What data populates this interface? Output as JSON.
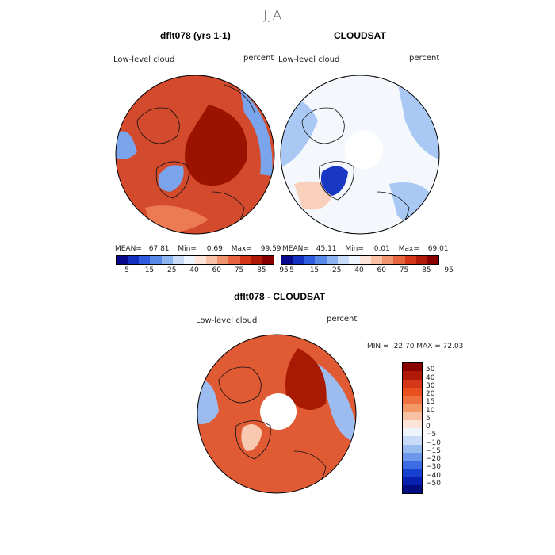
{
  "season": "JJA",
  "panels": {
    "model": {
      "title": "dflt078 (yrs 1-1)",
      "field_label": "Low-level cloud",
      "units": "percent",
      "stats": {
        "mean_label": "MEAN=",
        "mean": "67.81",
        "min_label": "Min=",
        "min": "0.69",
        "max_label": "Max=",
        "max": "99.59"
      }
    },
    "obs": {
      "title": "CLOUDSAT",
      "field_label": "Low-level cloud",
      "units": "percent",
      "stats": {
        "mean_label": "MEAN=",
        "mean": "45.11",
        "min_label": "Min=",
        "min": "0.01",
        "max_label": "Max=",
        "max": "69.01"
      }
    },
    "diff": {
      "title": "dflt078 - CLOUDSAT",
      "field_label": "Low-level cloud",
      "units": "percent",
      "minmax_text": "MIN = -22.70 MAX =  72.03"
    }
  },
  "abs_colorbar": {
    "ticks": [
      "5",
      "15",
      "25",
      "40",
      "60",
      "75",
      "85",
      "95"
    ],
    "colors": [
      "#08088c",
      "#1330c0",
      "#2f5ce0",
      "#5888e8",
      "#8cb4f0",
      "#c8dcf8",
      "#eef4fc",
      "#fce4d8",
      "#f8c0a4",
      "#f09470",
      "#e86440",
      "#d43818",
      "#b01808",
      "#880000"
    ]
  },
  "diff_colorbar": {
    "ticks": [
      "50",
      "40",
      "30",
      "20",
      "15",
      "10",
      "5",
      "0",
      "−5",
      "−10",
      "−15",
      "−20",
      "−30",
      "−40",
      "−50"
    ],
    "colors": [
      "#880000",
      "#b01808",
      "#d43818",
      "#e85020",
      "#f07040",
      "#f49868",
      "#f8c0a4",
      "#fce4d8",
      "#eef4fc",
      "#c8dcf8",
      "#98bcf0",
      "#6c98ec",
      "#3c6ce4",
      "#1840d0",
      "#0820b0",
      "#000c80"
    ]
  },
  "map_colors": {
    "model_bg": "#d44a2c",
    "model_hi": "#9c1200",
    "model_mid": "#ec7a52",
    "model_blue": "#7aa4ec",
    "obs_bg": "#f4f8fc",
    "obs_blue": "#aac8f4",
    "obs_deep": "#1838c4",
    "obs_warm": "#f8d0bc",
    "diff_bg": "#e05a34",
    "diff_hi": "#a81a04",
    "diff_blue": "#9cbcf0",
    "diff_light": "#f8c8b0"
  }
}
